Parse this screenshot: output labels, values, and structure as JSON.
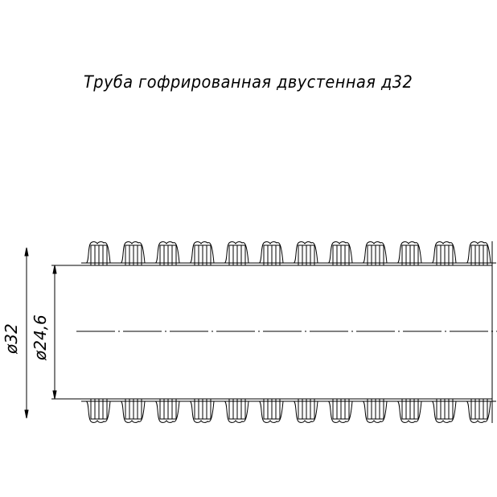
{
  "title": "Труба гофрированная двустенная д32",
  "dimensions": {
    "outer_diameter": "ø32",
    "inner_diameter": "ø24,6"
  },
  "drawing": {
    "rib_count": 12,
    "line_color": "#000000"
  }
}
